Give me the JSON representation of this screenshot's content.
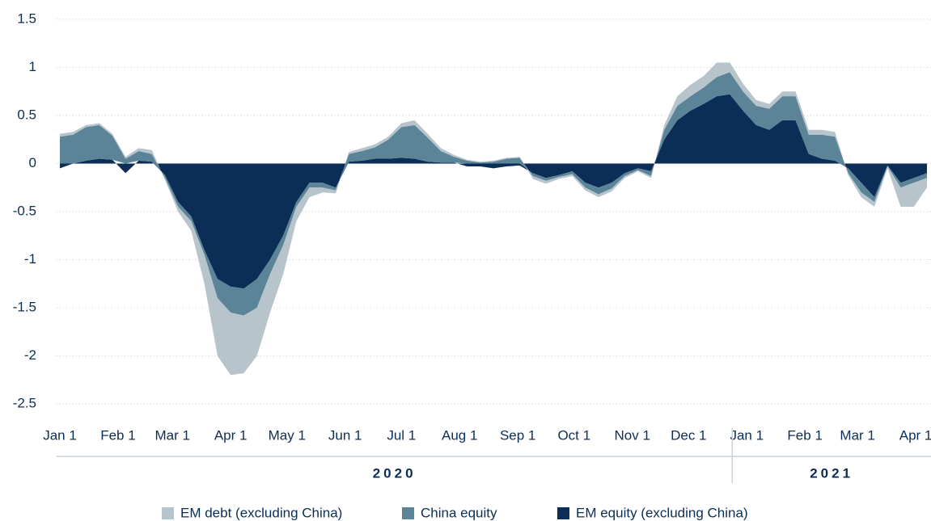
{
  "chart_data": {
    "type": "stacked_area",
    "x": [
      "2020-01-01",
      "2020-01-08",
      "2020-01-15",
      "2020-01-22",
      "2020-01-29",
      "2020-02-05",
      "2020-02-12",
      "2020-02-19",
      "2020-02-26",
      "2020-03-04",
      "2020-03-11",
      "2020-03-18",
      "2020-03-25",
      "2020-04-01",
      "2020-04-08",
      "2020-04-15",
      "2020-04-22",
      "2020-04-29",
      "2020-05-06",
      "2020-05-13",
      "2020-05-20",
      "2020-05-27",
      "2020-06-03",
      "2020-06-10",
      "2020-06-17",
      "2020-06-24",
      "2020-07-01",
      "2020-07-08",
      "2020-07-15",
      "2020-07-22",
      "2020-07-29",
      "2020-08-05",
      "2020-08-12",
      "2020-08-19",
      "2020-08-26",
      "2020-09-02",
      "2020-09-09",
      "2020-09-16",
      "2020-09-23",
      "2020-09-30",
      "2020-10-07",
      "2020-10-14",
      "2020-10-21",
      "2020-10-28",
      "2020-11-04",
      "2020-11-11",
      "2020-11-18",
      "2020-11-25",
      "2020-12-02",
      "2020-12-09",
      "2020-12-16",
      "2020-12-23",
      "2020-12-30",
      "2021-01-06",
      "2021-01-13",
      "2021-01-20",
      "2021-01-27",
      "2021-02-03",
      "2021-02-10",
      "2021-02-17",
      "2021-02-24",
      "2021-03-03",
      "2021-03-10",
      "2021-03-17",
      "2021-03-24",
      "2021-03-31",
      "2021-04-07"
    ],
    "series": [
      {
        "name": "EM equity (excluding China)",
        "color": "#0c2d55",
        "values": [
          -0.05,
          0,
          0.03,
          0.05,
          0.04,
          -0.1,
          0.03,
          0.02,
          -0.12,
          -0.4,
          -0.55,
          -0.9,
          -1.2,
          -1.28,
          -1.3,
          -1.2,
          -1.0,
          -0.75,
          -0.4,
          -0.2,
          -0.2,
          -0.25,
          0.02,
          0.03,
          0.05,
          0.05,
          0.06,
          0.05,
          0.02,
          0.01,
          0.01,
          -0.03,
          -0.03,
          -0.05,
          -0.03,
          -0.02,
          -0.1,
          -0.15,
          -0.12,
          -0.08,
          -0.2,
          -0.25,
          -0.2,
          -0.1,
          -0.05,
          -0.08,
          0.25,
          0.45,
          0.55,
          0.62,
          0.7,
          0.72,
          0.55,
          0.4,
          0.35,
          0.45,
          0.45,
          0.1,
          0.05,
          0.03,
          -0.05,
          -0.2,
          -0.35,
          -0.02,
          -0.2,
          -0.15,
          -0.1
        ]
      },
      {
        "name": "China equity",
        "color": "#5b8499",
        "values": [
          0.28,
          0.3,
          0.35,
          0.35,
          0.25,
          0.05,
          0.1,
          0.08,
          -0.03,
          -0.05,
          -0.05,
          -0.05,
          -0.2,
          -0.27,
          -0.28,
          -0.3,
          -0.15,
          -0.1,
          -0.05,
          -0.05,
          -0.05,
          -0.03,
          0.08,
          0.1,
          0.12,
          0.2,
          0.32,
          0.35,
          0.25,
          0.12,
          0.06,
          0.03,
          0.01,
          0.02,
          0.05,
          0.06,
          -0.03,
          -0.03,
          -0.02,
          -0.03,
          -0.05,
          -0.07,
          -0.06,
          -0.03,
          -0.02,
          -0.05,
          0.1,
          0.15,
          0.15,
          0.17,
          0.2,
          0.23,
          0.2,
          0.2,
          0.22,
          0.25,
          0.25,
          0.2,
          0.25,
          0.25,
          -0.05,
          -0.1,
          -0.05,
          -0.01,
          -0.05,
          -0.05,
          -0.05
        ]
      },
      {
        "name": "EM debt (excluding China)",
        "color": "#b7c4cc",
        "values": [
          0.03,
          0.03,
          0.02,
          0.02,
          0.02,
          0.02,
          0.03,
          0.04,
          -0.02,
          -0.05,
          -0.1,
          -0.3,
          -0.6,
          -0.65,
          -0.6,
          -0.5,
          -0.4,
          -0.3,
          -0.15,
          -0.1,
          -0.05,
          -0.03,
          0.02,
          0.03,
          0.03,
          0.03,
          0.04,
          0.05,
          0.04,
          0.03,
          0.02,
          0.01,
          0.01,
          0.01,
          0.01,
          0.01,
          -0.03,
          -0.03,
          -0.02,
          -0.02,
          -0.03,
          -0.03,
          -0.03,
          -0.02,
          -0.01,
          -0.02,
          0.05,
          0.1,
          0.12,
          0.12,
          0.15,
          0.1,
          0.08,
          0.06,
          0.05,
          0.05,
          0.05,
          0.05,
          0.05,
          0.05,
          -0.02,
          -0.05,
          -0.05,
          -0.02,
          -0.2,
          -0.25,
          -0.1
        ]
      }
    ],
    "ylim": [
      -2.6,
      1.6
    ],
    "yticks": [
      1.5,
      1,
      0.5,
      0,
      -0.5,
      -1,
      -1.5,
      -2,
      -2.5
    ],
    "xticks": [
      {
        "value": "2020-01-01",
        "label": "Jan 1"
      },
      {
        "value": "2020-02-01",
        "label": "Feb 1"
      },
      {
        "value": "2020-03-01",
        "label": "Mar 1"
      },
      {
        "value": "2020-04-01",
        "label": "Apr 1"
      },
      {
        "value": "2020-05-01",
        "label": "May 1"
      },
      {
        "value": "2020-06-01",
        "label": "Jun 1"
      },
      {
        "value": "2020-07-01",
        "label": "Jul 1"
      },
      {
        "value": "2020-08-01",
        "label": "Aug 1"
      },
      {
        "value": "2020-09-01",
        "label": "Sep 1"
      },
      {
        "value": "2020-10-01",
        "label": "Oct 1"
      },
      {
        "value": "2020-11-01",
        "label": "Nov 1"
      },
      {
        "value": "2020-12-01",
        "label": "Dec 1"
      },
      {
        "value": "2021-01-01",
        "label": "Jan 1"
      },
      {
        "value": "2021-02-01",
        "label": "Feb 1"
      },
      {
        "value": "2021-03-01",
        "label": "Mar 1"
      },
      {
        "value": "2021-04-01",
        "label": "Apr 1"
      }
    ],
    "year_groups": [
      "2020",
      "2021"
    ],
    "grid": true,
    "legend": "bottom"
  }
}
